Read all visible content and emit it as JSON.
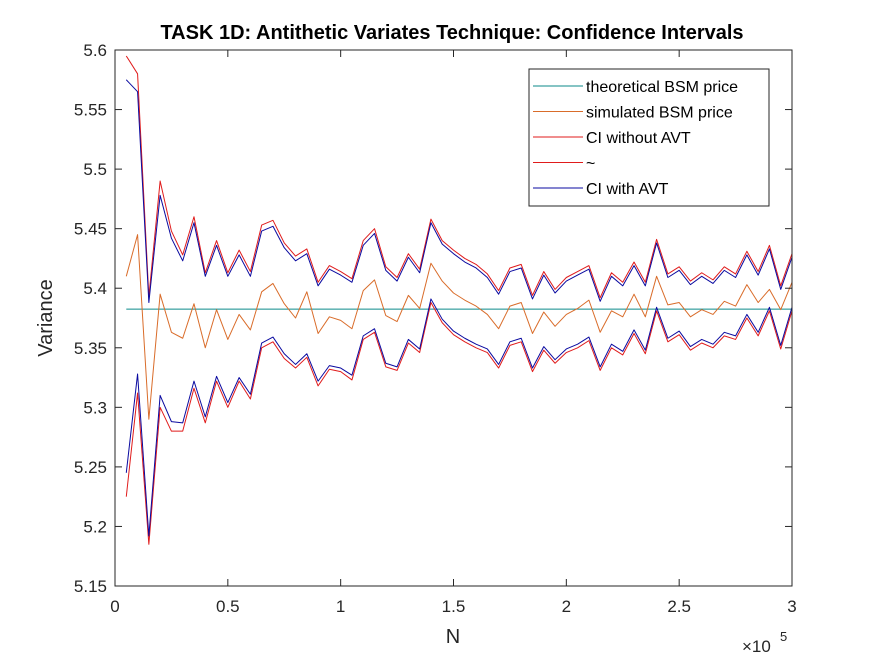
{
  "colors": {
    "theoretical": "#0b8a8a",
    "simulated": "#d96c2a",
    "ci_without_avt": "#e01b1b",
    "ci_with_avt": "#0a0aa0"
  },
  "chart_data": {
    "type": "line",
    "title": "TASK 1D: Antithetic Variates Technique: Confidence Intervals",
    "xlabel": "N",
    "ylabel": "Variance",
    "x_multiplier": "×10",
    "x_multiplier_exp": "5",
    "xlim": [
      0,
      300000
    ],
    "ylim": [
      5.15,
      5.6
    ],
    "xticks": [
      0,
      50000,
      100000,
      150000,
      200000,
      250000,
      300000
    ],
    "xtick_labels": [
      "0",
      "0.5",
      "1",
      "1.5",
      "2",
      "2.5",
      "3"
    ],
    "yticks": [
      5.15,
      5.2,
      5.25,
      5.3,
      5.35,
      5.4,
      5.45,
      5.5,
      5.55,
      5.6
    ],
    "ytick_labels": [
      "5.15",
      "5.2",
      "5.25",
      "5.3",
      "5.35",
      "5.4",
      "5.45",
      "5.5",
      "5.55",
      "5.6"
    ],
    "grid": false,
    "legend_location": "top-right",
    "legend": [
      {
        "label": "theoretical BSM price",
        "color_key": "theoretical"
      },
      {
        "label": "simulated BSM price",
        "color_key": "simulated"
      },
      {
        "label": "CI without AVT",
        "color_key": "ci_without_avt"
      },
      {
        "label": "~",
        "color_key": "ci_without_avt"
      },
      {
        "label": "CI with AVT",
        "color_key": "ci_with_avt"
      }
    ],
    "x": [
      5000,
      10000,
      15000,
      20000,
      25000,
      30000,
      35000,
      40000,
      45000,
      50000,
      55000,
      60000,
      65000,
      70000,
      75000,
      80000,
      85000,
      90000,
      95000,
      100000,
      105000,
      110000,
      115000,
      120000,
      125000,
      130000,
      135000,
      140000,
      145000,
      150000,
      155000,
      160000,
      165000,
      170000,
      175000,
      180000,
      185000,
      190000,
      195000,
      200000,
      205000,
      210000,
      215000,
      220000,
      225000,
      230000,
      235000,
      240000,
      245000,
      250000,
      255000,
      260000,
      265000,
      270000,
      275000,
      280000,
      285000,
      290000,
      295000,
      300000
    ],
    "theoretical_value": 5.3825,
    "series": [
      {
        "key": "simulated",
        "color_key": "simulated",
        "values": [
          5.41,
          5.445,
          5.29,
          5.395,
          5.363,
          5.358,
          5.387,
          5.35,
          5.382,
          5.357,
          5.378,
          5.365,
          5.397,
          5.404,
          5.387,
          5.375,
          5.397,
          5.362,
          5.376,
          5.373,
          5.366,
          5.398,
          5.407,
          5.377,
          5.372,
          5.394,
          5.383,
          5.421,
          5.406,
          5.396,
          5.39,
          5.385,
          5.378,
          5.366,
          5.385,
          5.388,
          5.362,
          5.38,
          5.368,
          5.378,
          5.383,
          5.39,
          5.363,
          5.381,
          5.376,
          5.395,
          5.376,
          5.41,
          5.386,
          5.388,
          5.376,
          5.382,
          5.378,
          5.389,
          5.385,
          5.403,
          5.388,
          5.399,
          5.382,
          5.405
        ]
      },
      {
        "key": "ci_without_avt_upper",
        "color_key": "ci_without_avt",
        "values": [
          5.595,
          5.58,
          5.393,
          5.49,
          5.448,
          5.428,
          5.46,
          5.413,
          5.44,
          5.413,
          5.432,
          5.414,
          5.453,
          5.457,
          5.438,
          5.427,
          5.433,
          5.405,
          5.419,
          5.414,
          5.408,
          5.44,
          5.45,
          5.418,
          5.409,
          5.429,
          5.416,
          5.458,
          5.44,
          5.432,
          5.425,
          5.42,
          5.412,
          5.398,
          5.417,
          5.42,
          5.394,
          5.414,
          5.399,
          5.409,
          5.414,
          5.419,
          5.392,
          5.413,
          5.405,
          5.422,
          5.405,
          5.441,
          5.412,
          5.418,
          5.406,
          5.413,
          5.407,
          5.418,
          5.412,
          5.431,
          5.414,
          5.436,
          5.402,
          5.429
        ]
      },
      {
        "key": "ci_without_avt_lower",
        "color_key": "ci_without_avt",
        "values": [
          5.225,
          5.312,
          5.185,
          5.3,
          5.28,
          5.28,
          5.316,
          5.287,
          5.322,
          5.3,
          5.322,
          5.307,
          5.35,
          5.355,
          5.341,
          5.333,
          5.342,
          5.318,
          5.332,
          5.33,
          5.323,
          5.357,
          5.363,
          5.334,
          5.331,
          5.354,
          5.346,
          5.388,
          5.371,
          5.361,
          5.355,
          5.35,
          5.346,
          5.333,
          5.352,
          5.355,
          5.33,
          5.348,
          5.337,
          5.346,
          5.35,
          5.356,
          5.331,
          5.35,
          5.344,
          5.362,
          5.345,
          5.381,
          5.355,
          5.361,
          5.348,
          5.354,
          5.35,
          5.36,
          5.357,
          5.375,
          5.36,
          5.381,
          5.349,
          5.381
        ]
      },
      {
        "key": "ci_with_avt_upper",
        "color_key": "ci_with_avt",
        "values": [
          5.575,
          5.565,
          5.388,
          5.478,
          5.442,
          5.423,
          5.455,
          5.41,
          5.436,
          5.41,
          5.428,
          5.41,
          5.448,
          5.452,
          5.434,
          5.423,
          5.429,
          5.402,
          5.416,
          5.411,
          5.405,
          5.436,
          5.446,
          5.415,
          5.406,
          5.426,
          5.413,
          5.455,
          5.437,
          5.429,
          5.422,
          5.417,
          5.409,
          5.395,
          5.414,
          5.417,
          5.391,
          5.411,
          5.396,
          5.406,
          5.411,
          5.416,
          5.389,
          5.41,
          5.402,
          5.419,
          5.402,
          5.438,
          5.409,
          5.415,
          5.403,
          5.41,
          5.404,
          5.415,
          5.409,
          5.428,
          5.411,
          5.433,
          5.399,
          5.426
        ]
      },
      {
        "key": "ci_with_avt_lower",
        "color_key": "ci_with_avt",
        "values": [
          5.245,
          5.328,
          5.192,
          5.31,
          5.288,
          5.287,
          5.322,
          5.292,
          5.326,
          5.304,
          5.325,
          5.311,
          5.354,
          5.359,
          5.345,
          5.336,
          5.345,
          5.322,
          5.335,
          5.333,
          5.327,
          5.36,
          5.366,
          5.337,
          5.334,
          5.357,
          5.349,
          5.391,
          5.374,
          5.364,
          5.358,
          5.353,
          5.349,
          5.336,
          5.355,
          5.358,
          5.333,
          5.351,
          5.34,
          5.349,
          5.353,
          5.359,
          5.334,
          5.353,
          5.347,
          5.365,
          5.348,
          5.384,
          5.358,
          5.364,
          5.351,
          5.357,
          5.353,
          5.363,
          5.36,
          5.378,
          5.363,
          5.384,
          5.352,
          5.384
        ]
      }
    ]
  }
}
